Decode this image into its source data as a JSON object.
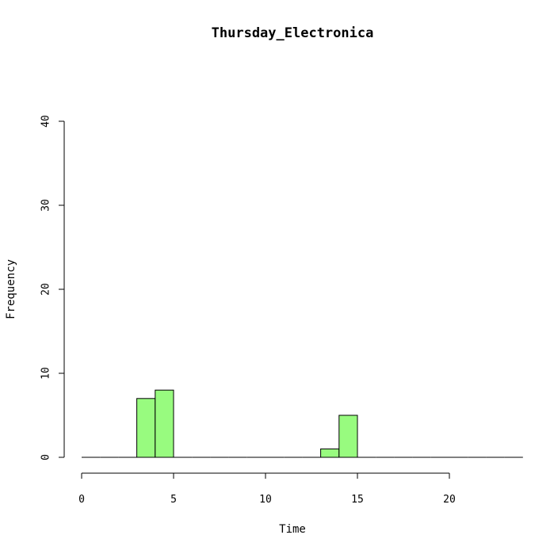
{
  "chart_data": {
    "type": "bar",
    "title": "Thursday_Electronica",
    "xlabel": "Time",
    "ylabel": "Frequency",
    "xlim": [
      0,
      24
    ],
    "ylim": [
      0,
      40
    ],
    "x_ticks": [
      0,
      5,
      10,
      15,
      20
    ],
    "y_ticks": [
      0,
      10,
      20,
      30,
      40
    ],
    "bin_width": 1,
    "bins": [
      {
        "start": 0,
        "count": 0
      },
      {
        "start": 1,
        "count": 0
      },
      {
        "start": 2,
        "count": 0
      },
      {
        "start": 3,
        "count": 7
      },
      {
        "start": 4,
        "count": 8
      },
      {
        "start": 5,
        "count": 0
      },
      {
        "start": 6,
        "count": 0
      },
      {
        "start": 7,
        "count": 0
      },
      {
        "start": 8,
        "count": 0
      },
      {
        "start": 9,
        "count": 0
      },
      {
        "start": 10,
        "count": 0
      },
      {
        "start": 11,
        "count": 0
      },
      {
        "start": 12,
        "count": 0
      },
      {
        "start": 13,
        "count": 1
      },
      {
        "start": 14,
        "count": 5
      },
      {
        "start": 15,
        "count": 0
      },
      {
        "start": 16,
        "count": 0
      },
      {
        "start": 17,
        "count": 0
      },
      {
        "start": 18,
        "count": 0
      },
      {
        "start": 19,
        "count": 0
      },
      {
        "start": 20,
        "count": 0
      },
      {
        "start": 21,
        "count": 0
      },
      {
        "start": 22,
        "count": 0
      },
      {
        "start": 23,
        "count": 0
      }
    ],
    "bar_color": "#98fb7f",
    "grid": false,
    "legend": "none"
  }
}
